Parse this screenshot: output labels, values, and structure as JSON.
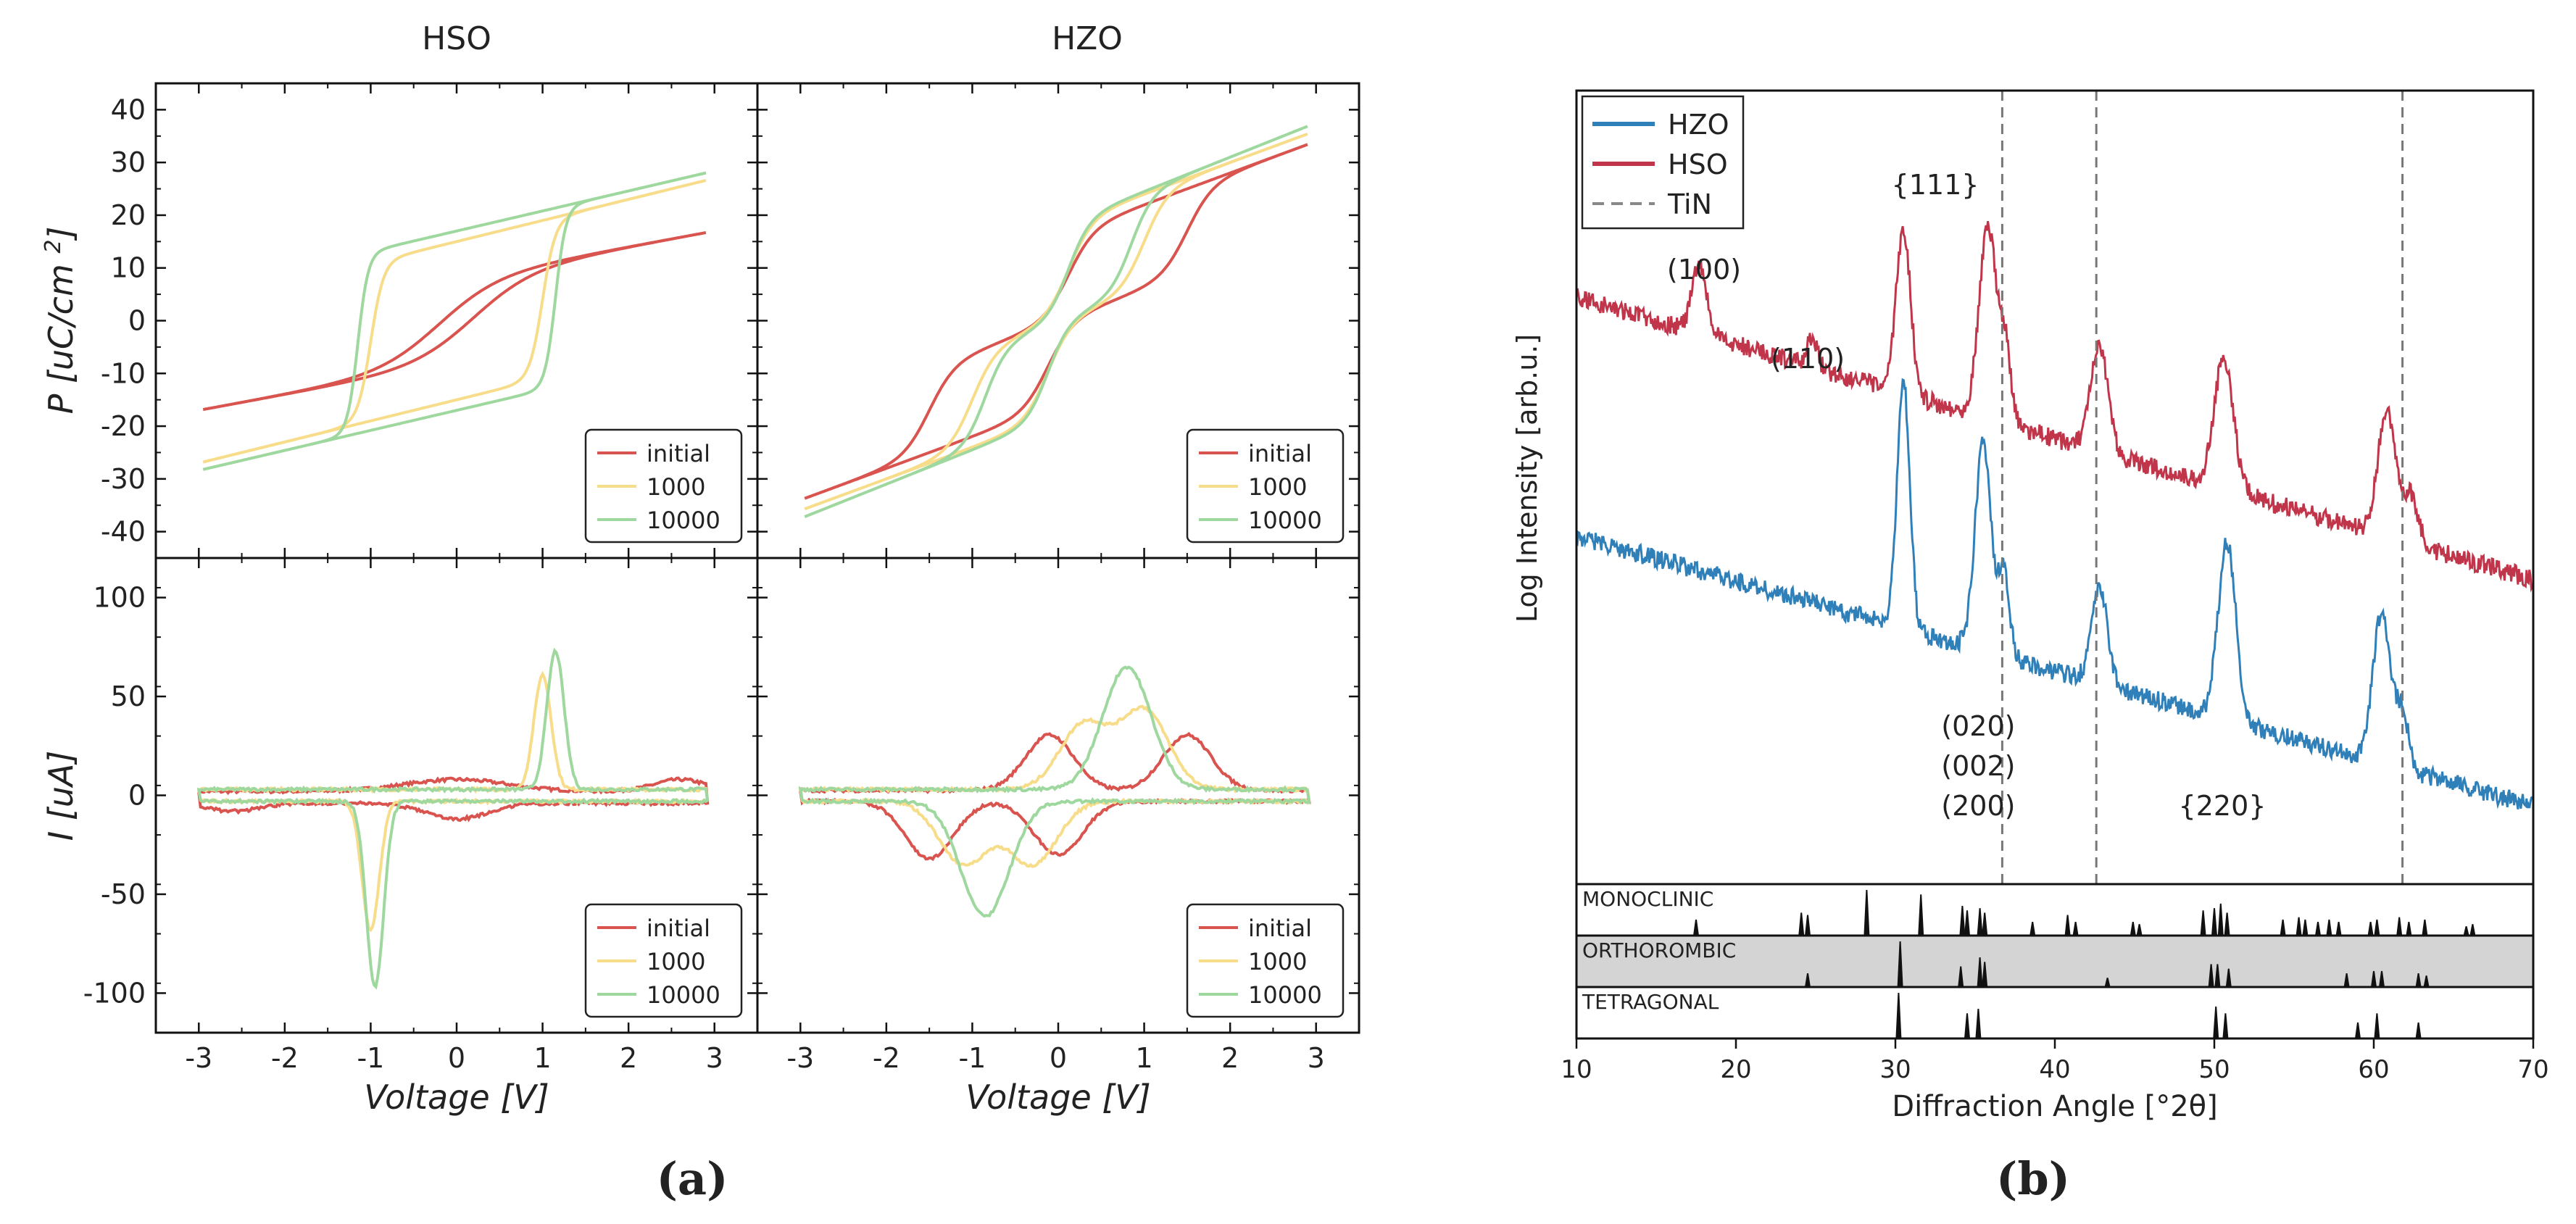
{
  "figure": {
    "label_a": "(a)",
    "label_b": "(b)"
  },
  "chart_data": [
    {
      "id": "pe-hso",
      "type": "line",
      "title": "HSO",
      "xlabel": "",
      "ylabel": "P [uC/cm2]",
      "xlim": [
        -3.5,
        3.5
      ],
      "ylim": [
        -45,
        45
      ],
      "x_ticks": [
        -3,
        -2,
        -1,
        0,
        1,
        2,
        3
      ],
      "y_ticks": [
        40,
        30,
        20,
        10,
        0,
        -10,
        -20,
        -30,
        -40
      ],
      "y_tick_labels": [
        "40",
        "30",
        "20",
        "10",
        "0",
        "-10",
        "-20",
        "-30",
        "-40"
      ],
      "legend": [
        "initial",
        "1000",
        "10000"
      ],
      "legend_position": "lower right",
      "series": [
        {
          "name": "initial",
          "color": "#d9534f",
          "params": {
            "Ps": 8,
            "Vc": 0.2,
            "w": 0.7,
            "k": 3.0
          }
        },
        {
          "name": "1000",
          "color": "#f7dc8a",
          "params": {
            "Ps": 15,
            "Vc": 1.0,
            "w": 0.15,
            "k": 4.0
          }
        },
        {
          "name": "10000",
          "color": "#9ed89e",
          "params": {
            "Ps": 17,
            "Vc": 1.15,
            "w": 0.12,
            "k": 3.8
          }
        }
      ]
    },
    {
      "id": "pe-hzo",
      "type": "line",
      "title": "HZO",
      "xlabel": "",
      "ylabel": "",
      "xlim": [
        -3.5,
        3.5
      ],
      "ylim": [
        -45,
        45
      ],
      "x_ticks": [
        -3,
        -2,
        -1,
        0,
        1,
        2,
        3
      ],
      "legend": [
        "initial",
        "1000",
        "10000"
      ],
      "legend_position": "lower right",
      "series": [
        {
          "name": "initial",
          "color": "#d9534f",
          "params": {
            "Ps": 16,
            "Vc": 0,
            "w": 0.3,
            "k": 6.0,
            "split": 1.5
          }
        },
        {
          "name": "1000",
          "color": "#f7dc8a",
          "params": {
            "Ps": 18,
            "Vc": 0,
            "w": 0.28,
            "k": 6.0,
            "split": 1.0
          }
        },
        {
          "name": "10000",
          "color": "#9ed89e",
          "params": {
            "Ps": 18,
            "Vc": 0,
            "w": 0.25,
            "k": 6.5,
            "split": 0.85
          }
        }
      ]
    },
    {
      "id": "iv-hso",
      "type": "line",
      "title": "",
      "xlabel": "Voltage [V]",
      "ylabel": "I [uA]",
      "xlim": [
        -3.5,
        3.5
      ],
      "ylim": [
        -120,
        120
      ],
      "x_ticks": [
        -3,
        -2,
        -1,
        0,
        1,
        2,
        3
      ],
      "x_tick_labels": [
        "-3",
        "-2",
        "-1",
        "0",
        "1",
        "2",
        "3"
      ],
      "y_ticks": [
        100,
        50,
        0,
        -50,
        -100
      ],
      "y_tick_labels": [
        "100",
        "50",
        "0",
        "-50",
        "-100"
      ],
      "legend": [
        "initial",
        "1000",
        "10000"
      ],
      "legend_position": "lower right",
      "series": [
        {
          "name": "initial",
          "color": "#d9534f",
          "peak_pos": [
            0.15,
            2.5
          ],
          "peak_neg": [
            0.05,
            -2.8
          ]
        },
        {
          "name": "1000",
          "color": "#f7dc8a",
          "peak_pos": [
            1.0,
            60
          ],
          "peak_neg": [
            -1.0,
            -68
          ]
        },
        {
          "name": "10000",
          "color": "#9ed89e",
          "peak_pos": [
            1.15,
            72
          ],
          "peak_neg": [
            -0.95,
            -97
          ]
        }
      ]
    },
    {
      "id": "iv-hzo",
      "type": "line",
      "title": "",
      "xlabel": "Voltage [V]",
      "ylabel": "",
      "xlim": [
        -3.5,
        3.5
      ],
      "ylim": [
        -120,
        120
      ],
      "x_ticks": [
        -3,
        -2,
        -1,
        0,
        1,
        2,
        3
      ],
      "x_tick_labels": [
        "-3",
        "-2",
        "-1",
        "0",
        "1",
        "2",
        "3"
      ],
      "legend": [
        "initial",
        "1000",
        "10000"
      ],
      "legend_position": "lower right",
      "series": [
        {
          "name": "initial",
          "color": "#d9534f",
          "peaks_pos": [
            [
              -0.1,
              30
            ],
            [
              1.5,
              30
            ]
          ],
          "peaks_neg": [
            [
              -1.5,
              -32
            ],
            [
              0.0,
              -30
            ]
          ]
        },
        {
          "name": "1000",
          "color": "#f7dc8a",
          "peaks_pos": [
            [
              0.3,
              35
            ],
            [
              1.0,
              42
            ]
          ],
          "peaks_neg": [
            [
              -1.1,
              -35
            ],
            [
              -0.3,
              -35
            ]
          ]
        },
        {
          "name": "10000",
          "color": "#9ed89e",
          "peaks_pos": [
            [
              0.8,
              64
            ]
          ],
          "peaks_neg": [
            [
              -0.85,
              -61
            ]
          ]
        }
      ]
    },
    {
      "id": "xrd",
      "type": "line",
      "title": "",
      "xlabel": "Diffraction Angle [°2θ]",
      "ylabel": "Log Intensity [arb.u.]",
      "xlim": [
        10,
        70
      ],
      "x_ticks": [
        10,
        20,
        30,
        40,
        50,
        60,
        70
      ],
      "x_tick_labels": [
        "10",
        "20",
        "30",
        "40",
        "50",
        "60",
        "70"
      ],
      "legend": [
        "HZO",
        "HSO",
        "TiN"
      ],
      "legend_position": "top-left",
      "tin_lines": [
        36.7,
        42.6,
        61.8
      ],
      "annotations": [
        {
          "text": "(100)",
          "x": 18.0,
          "pos": "upper"
        },
        {
          "text": "(110)",
          "x": 24.5,
          "pos": "upper-low"
        },
        {
          "text": "{111}",
          "x": 32.5,
          "pos": "top"
        },
        {
          "text": "(020)",
          "x": 35.2,
          "pos": "lower-1"
        },
        {
          "text": "(002)",
          "x": 35.2,
          "pos": "lower-2"
        },
        {
          "text": "(200)",
          "x": 35.2,
          "pos": "lower-3"
        },
        {
          "text": "{220}",
          "x": 50.5,
          "pos": "lower-3"
        }
      ],
      "series": [
        {
          "name": "HSO",
          "color": "#c0354a",
          "peaks": [
            [
              17.7,
              1.0,
              0.45
            ],
            [
              24.8,
              0.45,
              0.3
            ],
            [
              30.5,
              2.4,
              0.45
            ],
            [
              35.8,
              2.8,
              0.55
            ],
            [
              36.9,
              1.0,
              0.35
            ],
            [
              42.8,
              1.5,
              0.55
            ],
            [
              50.6,
              1.9,
              0.6
            ],
            [
              60.8,
              1.8,
              0.55
            ],
            [
              62.3,
              0.7,
              0.5
            ]
          ]
        },
        {
          "name": "HZO",
          "color": "#2f7fb8",
          "peaks": [
            [
              30.5,
              3.6,
              0.4
            ],
            [
              35.5,
              3.0,
              0.5
            ],
            [
              36.8,
              1.2,
              0.35
            ],
            [
              42.8,
              1.4,
              0.5
            ],
            [
              50.8,
              2.6,
              0.55
            ],
            [
              60.5,
              2.2,
              0.55
            ],
            [
              61.8,
              0.8,
              0.4
            ]
          ]
        }
      ]
    },
    {
      "id": "reference-patterns",
      "type": "bar",
      "xlim": [
        10,
        70
      ],
      "rows": [
        {
          "label": "MONOCLINIC",
          "shaded": false,
          "peaks": [
            [
              17.5,
              0.35
            ],
            [
              24.1,
              0.5
            ],
            [
              24.5,
              0.45
            ],
            [
              28.2,
              1.0
            ],
            [
              31.6,
              0.9
            ],
            [
              34.2,
              0.65
            ],
            [
              34.5,
              0.55
            ],
            [
              35.3,
              0.6
            ],
            [
              35.6,
              0.5
            ],
            [
              38.6,
              0.3
            ],
            [
              40.8,
              0.45
            ],
            [
              41.3,
              0.3
            ],
            [
              44.9,
              0.3
            ],
            [
              45.3,
              0.25
            ],
            [
              49.3,
              0.55
            ],
            [
              50.0,
              0.6
            ],
            [
              50.4,
              0.7
            ],
            [
              50.8,
              0.5
            ],
            [
              54.3,
              0.35
            ],
            [
              55.3,
              0.4
            ],
            [
              55.7,
              0.35
            ],
            [
              56.5,
              0.3
            ],
            [
              57.2,
              0.35
            ],
            [
              57.8,
              0.3
            ],
            [
              59.8,
              0.3
            ],
            [
              60.2,
              0.35
            ],
            [
              61.6,
              0.4
            ],
            [
              62.2,
              0.3
            ],
            [
              63.2,
              0.35
            ],
            [
              65.8,
              0.2
            ],
            [
              66.2,
              0.25
            ]
          ]
        },
        {
          "label": "ORTHOROMBIC",
          "shaded": true,
          "peaks": [
            [
              24.5,
              0.3
            ],
            [
              30.3,
              1.0
            ],
            [
              34.1,
              0.45
            ],
            [
              35.3,
              0.65
            ],
            [
              35.6,
              0.55
            ],
            [
              43.3,
              0.2
            ],
            [
              49.8,
              0.5
            ],
            [
              50.2,
              0.5
            ],
            [
              50.9,
              0.4
            ],
            [
              58.3,
              0.3
            ],
            [
              60.0,
              0.35
            ],
            [
              60.5,
              0.35
            ],
            [
              62.8,
              0.3
            ],
            [
              63.3,
              0.25
            ]
          ]
        },
        {
          "label": "TETRAGONAL",
          "shaded": false,
          "peaks": [
            [
              30.2,
              1.0
            ],
            [
              34.5,
              0.55
            ],
            [
              35.2,
              0.65
            ],
            [
              50.1,
              0.7
            ],
            [
              50.7,
              0.55
            ],
            [
              59.0,
              0.35
            ],
            [
              60.2,
              0.55
            ],
            [
              62.8,
              0.35
            ]
          ]
        }
      ]
    }
  ]
}
